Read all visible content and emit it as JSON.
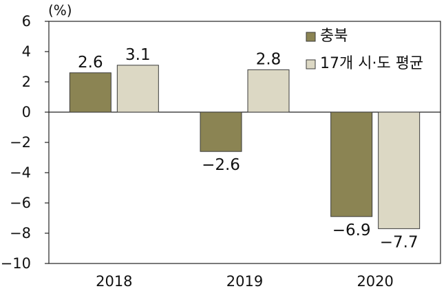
{
  "chart_data": {
    "type": "bar",
    "title": "",
    "unit_label": "(%)",
    "xlabel": "",
    "ylabel": "",
    "categories": [
      "2018",
      "2019",
      "2020"
    ],
    "series": [
      {
        "name": "충북",
        "values": [
          2.6,
          -2.6,
          -6.9
        ],
        "color": "#8b8453",
        "labels": [
          "2.6",
          "−2.6",
          "−6.9"
        ]
      },
      {
        "name": "17개 시·도 평균",
        "values": [
          3.1,
          2.8,
          -7.7
        ],
        "color": "#dcd8c4",
        "labels": [
          "3.1",
          "2.8",
          "−7.7"
        ]
      }
    ],
    "ylim": [
      -10,
      6
    ],
    "yticks": [
      6,
      4,
      2,
      0,
      -2,
      -4,
      -6,
      -8,
      -10
    ],
    "ytick_labels": [
      "6",
      "4",
      "2",
      "0",
      "−2",
      "−4",
      "−6",
      "−8",
      "−10"
    ],
    "legend_position": "top-right",
    "grid": false
  }
}
